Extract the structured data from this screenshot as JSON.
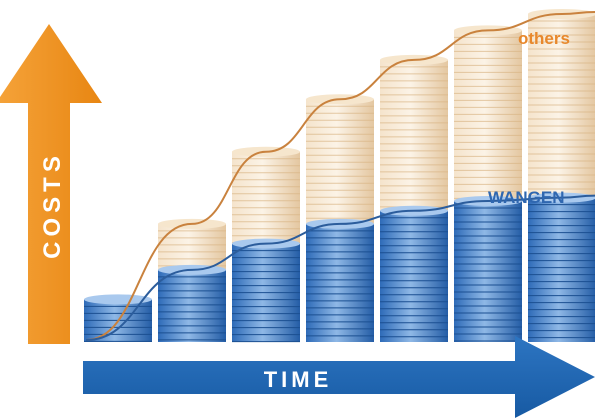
{
  "labels": {
    "y_axis": "COSTS",
    "x_axis": "TIME",
    "upper_curve": "others",
    "lower_curve": "WANGEN"
  },
  "colors": {
    "orange": "#f0901e",
    "blue": "#1f63ad",
    "gold_coin": "#e8c79c",
    "blue_coin": "#3f7fcb"
  },
  "chart_data": {
    "type": "area",
    "x_axis_label": "TIME",
    "y_axis_label": "COSTS",
    "stacks": [
      {
        "others_level": 0.13,
        "wangen_level": 0.13
      },
      {
        "others_level": 0.36,
        "wangen_level": 0.22
      },
      {
        "others_level": 0.58,
        "wangen_level": 0.3
      },
      {
        "others_level": 0.74,
        "wangen_level": 0.36
      },
      {
        "others_level": 0.86,
        "wangen_level": 0.4
      },
      {
        "others_level": 0.95,
        "wangen_level": 0.43
      },
      {
        "others_level": 1.0,
        "wangen_level": 0.44
      }
    ],
    "series": [
      {
        "name": "others"
      },
      {
        "name": "WANGEN"
      }
    ]
  }
}
